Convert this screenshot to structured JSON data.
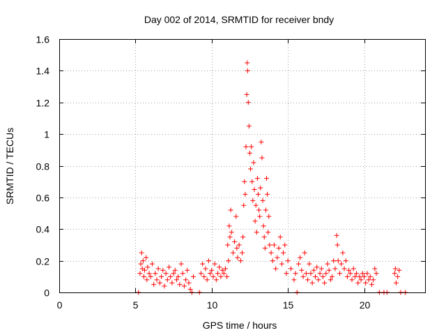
{
  "chart_data": {
    "type": "scatter",
    "title": "Day 002 of 2014, SRMTID for receiver bndy",
    "xlabel": "GPS time / hours",
    "ylabel": "SRMTID / TECUs",
    "xlim": [
      0,
      24
    ],
    "ylim": [
      0,
      1.6
    ],
    "x_ticks": [
      0,
      5,
      10,
      15,
      20
    ],
    "y_ticks": [
      0,
      0.2,
      0.4,
      0.6,
      0.8,
      1.0,
      1.2,
      1.4,
      1.6
    ],
    "x_tick_labels": [
      "0",
      "5",
      "10",
      "15",
      "20"
    ],
    "y_tick_labels": [
      "0",
      "0.2",
      "0.4",
      "0.6",
      "0.8",
      "1",
      "1.2",
      "1.4",
      "1.6"
    ],
    "grid": true,
    "marker": "+",
    "series": [
      {
        "name": "SRMTID",
        "color": "#ff0000",
        "points": [
          [
            5.2,
            0.0
          ],
          [
            5.3,
            0.12
          ],
          [
            5.35,
            0.18
          ],
          [
            5.4,
            0.25
          ],
          [
            5.45,
            0.15
          ],
          [
            5.5,
            0.2
          ],
          [
            5.55,
            0.1
          ],
          [
            5.6,
            0.14
          ],
          [
            5.7,
            0.22
          ],
          [
            5.75,
            0.08
          ],
          [
            5.8,
            0.16
          ],
          [
            5.9,
            0.12
          ],
          [
            6.0,
            0.1
          ],
          [
            6.1,
            0.18
          ],
          [
            6.2,
            0.05
          ],
          [
            6.3,
            0.12
          ],
          [
            6.4,
            0.08
          ],
          [
            6.5,
            0.15
          ],
          [
            6.6,
            0.06
          ],
          [
            6.7,
            0.1
          ],
          [
            6.8,
            0.14
          ],
          [
            6.9,
            0.04
          ],
          [
            7.0,
            0.12
          ],
          [
            7.1,
            0.08
          ],
          [
            7.2,
            0.16
          ],
          [
            7.3,
            0.1
          ],
          [
            7.4,
            0.06
          ],
          [
            7.5,
            0.12
          ],
          [
            7.6,
            0.14
          ],
          [
            7.7,
            0.08
          ],
          [
            7.8,
            0.1
          ],
          [
            7.9,
            0.05
          ],
          [
            8.0,
            0.18
          ],
          [
            8.1,
            0.12
          ],
          [
            8.2,
            0.04
          ],
          [
            8.3,
            0.08
          ],
          [
            8.4,
            0.14
          ],
          [
            8.5,
            0.06
          ],
          [
            8.6,
            0.02
          ],
          [
            8.7,
            0.0
          ],
          [
            8.8,
            0.1
          ],
          [
            9.2,
            0.0
          ],
          [
            9.3,
            0.12
          ],
          [
            9.4,
            0.18
          ],
          [
            9.5,
            0.1
          ],
          [
            9.6,
            0.15
          ],
          [
            9.7,
            0.08
          ],
          [
            9.8,
            0.2
          ],
          [
            9.9,
            0.12
          ],
          [
            10.0,
            0.14
          ],
          [
            10.1,
            0.1
          ],
          [
            10.2,
            0.18
          ],
          [
            10.3,
            0.08
          ],
          [
            10.4,
            0.12
          ],
          [
            10.5,
            0.16
          ],
          [
            10.6,
            0.1
          ],
          [
            10.7,
            0.14
          ],
          [
            10.8,
            0.12
          ],
          [
            10.9,
            0.15
          ],
          [
            11.0,
            0.1
          ],
          [
            11.05,
            0.3
          ],
          [
            11.1,
            0.2
          ],
          [
            11.15,
            0.42
          ],
          [
            11.2,
            0.35
          ],
          [
            11.25,
            0.52
          ],
          [
            11.3,
            0.38
          ],
          [
            11.4,
            0.25
          ],
          [
            11.5,
            0.32
          ],
          [
            11.6,
            0.48
          ],
          [
            11.65,
            0.28
          ],
          [
            11.7,
            0.22
          ],
          [
            11.8,
            0.3
          ],
          [
            11.9,
            0.2
          ],
          [
            12.0,
            0.25
          ],
          [
            12.05,
            0.35
          ],
          [
            12.1,
            0.55
          ],
          [
            12.15,
            0.7
          ],
          [
            12.2,
            0.62
          ],
          [
            12.25,
            0.92
          ],
          [
            12.3,
            1.25
          ],
          [
            12.33,
            1.45
          ],
          [
            12.36,
            1.4
          ],
          [
            12.4,
            1.2
          ],
          [
            12.45,
            1.05
          ],
          [
            12.5,
            0.88
          ],
          [
            12.55,
            0.78
          ],
          [
            12.6,
            0.92
          ],
          [
            12.65,
            0.7
          ],
          [
            12.7,
            0.58
          ],
          [
            12.75,
            0.82
          ],
          [
            12.8,
            0.65
          ],
          [
            12.85,
            0.45
          ],
          [
            12.9,
            0.55
          ],
          [
            12.95,
            0.38
          ],
          [
            13.0,
            0.72
          ],
          [
            13.05,
            0.62
          ],
          [
            13.1,
            0.52
          ],
          [
            13.15,
            0.48
          ],
          [
            13.2,
            0.66
          ],
          [
            13.25,
            0.95
          ],
          [
            13.3,
            0.85
          ],
          [
            13.35,
            0.58
          ],
          [
            13.4,
            0.42
          ],
          [
            13.45,
            0.35
          ],
          [
            13.5,
            0.28
          ],
          [
            13.55,
            0.52
          ],
          [
            13.6,
            0.72
          ],
          [
            13.65,
            0.62
          ],
          [
            13.7,
            0.38
          ],
          [
            13.75,
            0.48
          ],
          [
            13.8,
            0.3
          ],
          [
            13.9,
            0.25
          ],
          [
            14.0,
            0.2
          ],
          [
            14.1,
            0.3
          ],
          [
            14.2,
            0.15
          ],
          [
            14.3,
            0.22
          ],
          [
            14.4,
            0.28
          ],
          [
            14.5,
            0.35
          ],
          [
            14.6,
            0.18
          ],
          [
            14.7,
            0.25
          ],
          [
            14.8,
            0.3
          ],
          [
            14.9,
            0.12
          ],
          [
            15.0,
            0.2
          ],
          [
            15.2,
            0.15
          ],
          [
            15.4,
            0.08
          ],
          [
            15.5,
            0.12
          ],
          [
            15.6,
            0.0
          ],
          [
            15.7,
            0.18
          ],
          [
            15.8,
            0.22
          ],
          [
            15.9,
            0.14
          ],
          [
            16.0,
            0.1
          ],
          [
            16.1,
            0.25
          ],
          [
            16.2,
            0.12
          ],
          [
            16.3,
            0.08
          ],
          [
            16.4,
            0.18
          ],
          [
            16.5,
            0.12
          ],
          [
            16.6,
            0.06
          ],
          [
            16.7,
            0.14
          ],
          [
            16.8,
            0.1
          ],
          [
            16.9,
            0.16
          ],
          [
            17.0,
            0.08
          ],
          [
            17.1,
            0.12
          ],
          [
            17.2,
            0.15
          ],
          [
            17.3,
            0.1
          ],
          [
            17.4,
            0.06
          ],
          [
            17.5,
            0.12
          ],
          [
            17.6,
            0.18
          ],
          [
            17.7,
            0.14
          ],
          [
            17.8,
            0.08
          ],
          [
            17.9,
            0.1
          ],
          [
            18.0,
            0.2
          ],
          [
            18.1,
            0.15
          ],
          [
            18.2,
            0.36
          ],
          [
            18.25,
            0.3
          ],
          [
            18.3,
            0.2
          ],
          [
            18.4,
            0.12
          ],
          [
            18.5,
            0.18
          ],
          [
            18.6,
            0.25
          ],
          [
            18.7,
            0.15
          ],
          [
            18.8,
            0.2
          ],
          [
            18.9,
            0.1
          ],
          [
            19.0,
            0.14
          ],
          [
            19.1,
            0.12
          ],
          [
            19.2,
            0.08
          ],
          [
            19.3,
            0.15
          ],
          [
            19.4,
            0.1
          ],
          [
            19.5,
            0.12
          ],
          [
            19.6,
            0.06
          ],
          [
            19.7,
            0.1
          ],
          [
            19.8,
            0.08
          ],
          [
            19.9,
            0.12
          ],
          [
            20.0,
            0.1
          ],
          [
            20.1,
            0.06
          ],
          [
            20.2,
            0.12
          ],
          [
            20.3,
            0.08
          ],
          [
            20.4,
            0.1
          ],
          [
            20.5,
            0.05
          ],
          [
            20.6,
            0.08
          ],
          [
            20.7,
            0.15
          ],
          [
            20.8,
            0.12
          ],
          [
            21.0,
            0.0
          ],
          [
            21.3,
            0.0
          ],
          [
            21.5,
            0.0
          ],
          [
            22.0,
            0.12
          ],
          [
            22.05,
            0.15
          ],
          [
            22.1,
            0.06
          ],
          [
            22.2,
            0.1
          ],
          [
            22.3,
            0.14
          ],
          [
            22.4,
            0.0
          ],
          [
            22.7,
            0.0
          ]
        ]
      }
    ]
  }
}
